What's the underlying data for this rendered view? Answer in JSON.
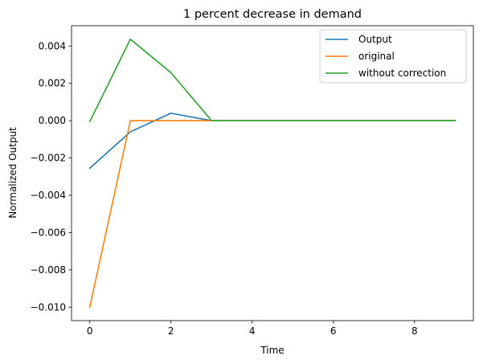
{
  "chart_data": {
    "type": "line",
    "title": "1 percent decrease in demand",
    "xlabel": "Time",
    "ylabel": "Normalized Output",
    "xlim": [
      -0.45,
      9.45
    ],
    "ylim": [
      -0.01072,
      0.00509
    ],
    "xticks": [
      0,
      2,
      4,
      6,
      8
    ],
    "xtick_labels": [
      "0",
      "2",
      "4",
      "6",
      "8"
    ],
    "yticks": [
      -0.01,
      -0.008,
      -0.006,
      -0.004,
      -0.002,
      0.0,
      0.002,
      0.004
    ],
    "ytick_labels": [
      "−0.010",
      "−0.008",
      "−0.006",
      "−0.004",
      "−0.002",
      "0.000",
      "0.002",
      "0.004"
    ],
    "grid": false,
    "legend_position": "top-right",
    "x": [
      0,
      1,
      2,
      3,
      4,
      5,
      6,
      7,
      8,
      9
    ],
    "series": [
      {
        "name": "Output",
        "color": "#1f77b4",
        "values": [
          -0.00255,
          -0.0006,
          0.0004,
          0.0,
          0.0,
          0.0,
          0.0,
          0.0,
          0.0,
          0.0
        ]
      },
      {
        "name": "original",
        "color": "#ff7f0e",
        "values": [
          -0.01,
          0.0,
          0.0,
          0.0,
          0.0,
          0.0,
          0.0,
          0.0,
          0.0,
          0.0
        ]
      },
      {
        "name": "without correction",
        "color": "#2ca02c",
        "values": [
          -5e-05,
          0.00437,
          0.00257,
          0.0,
          0.0,
          0.0,
          0.0,
          0.0,
          0.0,
          0.0
        ]
      }
    ]
  }
}
